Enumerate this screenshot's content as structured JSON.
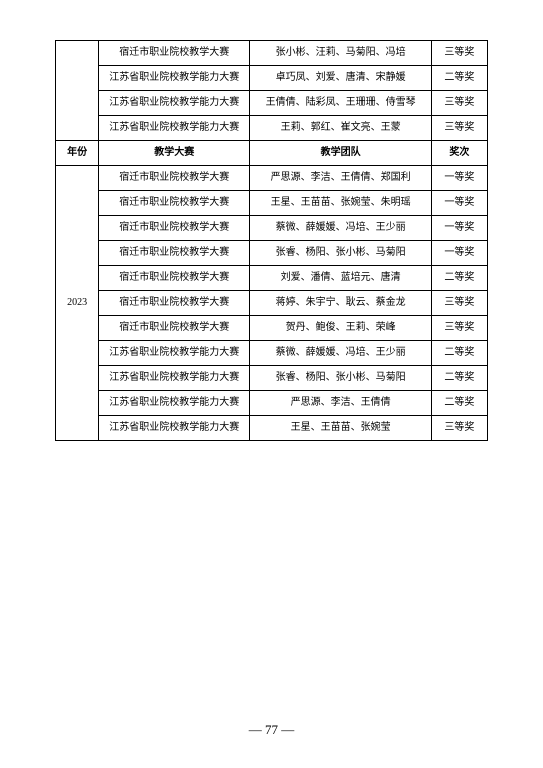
{
  "table": {
    "colors": {
      "border": "#000000",
      "text": "#000000",
      "bg": "#ffffff"
    },
    "font_size": 10,
    "topRows": [
      {
        "contest": "宿迁市职业院校教学大赛",
        "team": "张小彬、汪莉、马菊阳、冯培",
        "award": "三等奖"
      },
      {
        "contest": "江苏省职业院校教学能力大赛",
        "team": "卓巧凤、刘爱、唐清、宋静媛",
        "award": "二等奖"
      },
      {
        "contest": "江苏省职业院校教学能力大赛",
        "team": "王倩倩、陆彩凤、王珊珊、侍雪琴",
        "award": "三等奖"
      },
      {
        "contest": "江苏省职业院校教学能力大赛",
        "team": "王莉、郭红、崔文亮、王蒙",
        "award": "三等奖"
      }
    ],
    "headers": {
      "year": "年份",
      "contest": "教学大赛",
      "team": "教学团队",
      "award": "奖次"
    },
    "yearValue": "2023",
    "bottomRows": [
      {
        "contest": "宿迁市职业院校教学大赛",
        "team": "严思源、李洁、王倩倩、郑国利",
        "award": "一等奖"
      },
      {
        "contest": "宿迁市职业院校教学大赛",
        "team": "王星、王苗苗、张婉莹、朱明瑶",
        "award": "一等奖"
      },
      {
        "contest": "宿迁市职业院校教学大赛",
        "team": "蔡微、薛媛媛、冯培、王少丽",
        "award": "一等奖"
      },
      {
        "contest": "宿迁市职业院校教学大赛",
        "team": "张睿、杨阳、张小彬、马菊阳",
        "award": "一等奖"
      },
      {
        "contest": "宿迁市职业院校教学大赛",
        "team": "刘爱、潘倩、蓝培元、唐清",
        "award": "二等奖"
      },
      {
        "contest": "宿迁市职业院校教学大赛",
        "team": "蒋婷、朱宇宁、耿云、蔡金龙",
        "award": "三等奖"
      },
      {
        "contest": "宿迁市职业院校教学大赛",
        "team": "贺丹、鲍俊、王莉、荣峰",
        "award": "三等奖"
      },
      {
        "contest": "江苏省职业院校教学能力大赛",
        "team": "蔡微、薛媛媛、冯培、王少丽",
        "award": "二等奖"
      },
      {
        "contest": "江苏省职业院校教学能力大赛",
        "team": "张睿、杨阳、张小彬、马菊阳",
        "award": "二等奖"
      },
      {
        "contest": "江苏省职业院校教学能力大赛",
        "team": "严思源、李洁、王倩倩",
        "award": "二等奖"
      },
      {
        "contest": "江苏省职业院校教学能力大赛",
        "team": "王星、王苗苗、张婉莹",
        "award": "三等奖"
      }
    ]
  },
  "pageNumber": "— 77 —"
}
